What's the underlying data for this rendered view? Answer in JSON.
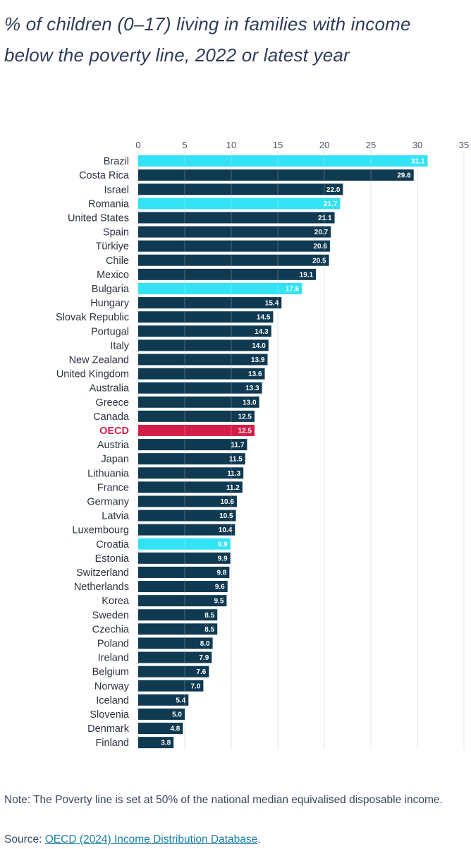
{
  "header": {
    "title": "% of children (0–17) living in families with income below the poverty line, 2022 or latest year"
  },
  "footer": {
    "note": "Note: The Poverty line is set at 50% of the national median equivalised disposable income.",
    "source_prefix": "Source: ",
    "source_link": "OECD (2024) Income Distribution Database",
    "source_suffix": "."
  },
  "colors": {
    "default_bar": "#0f3a52",
    "highlight_bar": "#33e3f5",
    "oecd_bar": "#d41e4a",
    "label_text": "#ffffff",
    "category_text": "#2b3340",
    "oecd_text": "#d41e4a"
  },
  "chart_data": {
    "type": "bar",
    "orientation": "horizontal",
    "xlim": [
      0,
      35
    ],
    "xticks": [
      "0",
      "5",
      "10",
      "15",
      "20",
      "25",
      "30",
      "35"
    ],
    "grid": true,
    "categories": [
      "Brazil",
      "Costa Rica",
      "Israel",
      "Romania",
      "United States",
      "Spain",
      "Türkiye",
      "Chile",
      "Mexico",
      "Bulgaria",
      "Hungary",
      "Slovak Republic",
      "Portugal",
      "Italy",
      "New Zealand",
      "United Kingdom",
      "Australia",
      "Greece",
      "Canada",
      "OECD",
      "Austria",
      "Japan",
      "Lithuania",
      "France",
      "Germany",
      "Latvia",
      "Luxembourg",
      "Croatia",
      "Estonia",
      "Switzerland",
      "Netherlands",
      "Korea",
      "Sweden",
      "Czechia",
      "Poland",
      "Ireland",
      "Belgium",
      "Norway",
      "Iceland",
      "Slovenia",
      "Denmark",
      "Finland"
    ],
    "values": [
      31.1,
      29.6,
      22.0,
      21.7,
      21.1,
      20.7,
      20.6,
      20.5,
      19.1,
      17.6,
      15.4,
      14.5,
      14.3,
      14.0,
      13.9,
      13.6,
      13.3,
      13.0,
      12.5,
      12.5,
      11.7,
      11.5,
      11.3,
      11.2,
      10.6,
      10.5,
      10.4,
      9.9,
      9.9,
      9.8,
      9.6,
      9.5,
      8.5,
      8.5,
      8.0,
      7.9,
      7.6,
      7.0,
      5.4,
      5.0,
      4.8,
      3.8
    ],
    "value_labels": [
      "31.1",
      "29.6",
      "22.0",
      "21.7",
      "21.1",
      "20.7",
      "20.6",
      "20.5",
      "19.1",
      "17.6",
      "15.4",
      "14.5",
      "14.3",
      "14.0",
      "13.9",
      "13.6",
      "13.3",
      "13.0",
      "12.5",
      "12.5",
      "11.7",
      "11.5",
      "11.3",
      "11.2",
      "10.6",
      "10.5",
      "10.4",
      "9.9",
      "9.9",
      "9.8",
      "9.6",
      "9.5",
      "8.5",
      "8.5",
      "8.0",
      "7.9",
      "7.6",
      "7.0",
      "5.4",
      "5.0",
      "4.8",
      "3.8"
    ],
    "highlighted": [
      "Brazil",
      "Romania",
      "Bulgaria",
      "Croatia"
    ],
    "reference": "OECD"
  }
}
